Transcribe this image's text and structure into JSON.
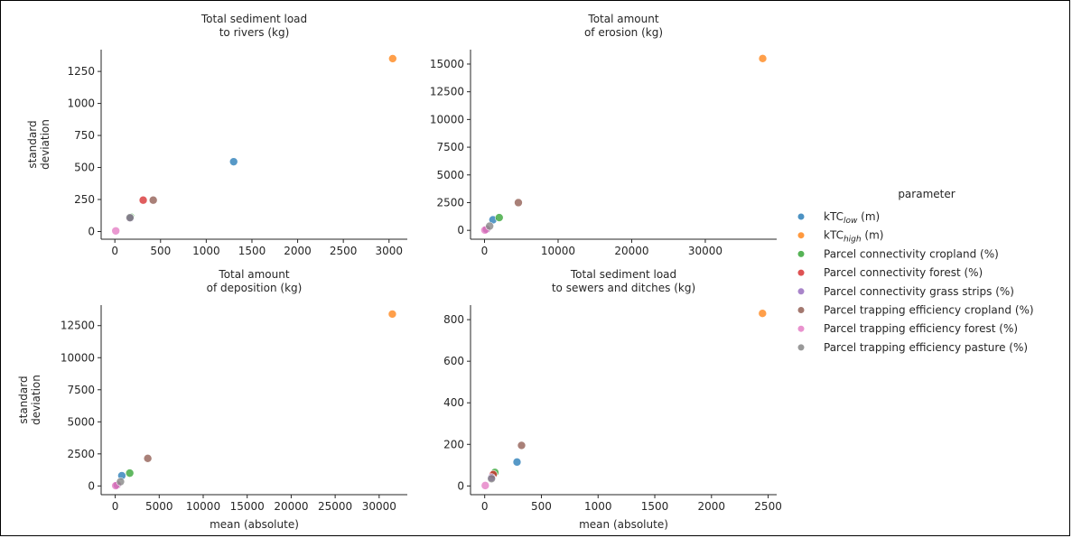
{
  "legend": {
    "title": "parameter",
    "placement": "right",
    "entries": [
      {
        "key": "ktc_low",
        "prefix": "kTC",
        "subscript": "low",
        "suffix": " (m)",
        "color": "#1f77b4"
      },
      {
        "key": "ktc_high",
        "prefix": "kTC",
        "subscript": "high",
        "suffix": " (m)",
        "color": "#ff7f0e"
      },
      {
        "key": "conn_crop",
        "label": "Parcel connectivity cropland (%)",
        "color": "#2ca02c"
      },
      {
        "key": "conn_forest",
        "label": "Parcel connectivity forest (%)",
        "color": "#d62728"
      },
      {
        "key": "conn_grass",
        "label": "Parcel connectivity grass strips (%)",
        "color": "#9467bd"
      },
      {
        "key": "trap_crop",
        "label": "Parcel trapping efficiency cropland (%)",
        "color": "#8c564b"
      },
      {
        "key": "trap_forest",
        "label": "Parcel trapping efficiency forest (%)",
        "color": "#e377c2"
      },
      {
        "key": "trap_pasture",
        "label": "Parcel trapping efficiency pasture (%)",
        "color": "#7f7f7f"
      }
    ]
  },
  "chart_data": [
    {
      "type": "scatter",
      "title": "Total sediment load\nto rivers (kg)",
      "xlabel": "",
      "ylabel": "standard\ndeviation",
      "xlim": [
        -150,
        3200
      ],
      "ylim": [
        -60,
        1420
      ],
      "xticks": [
        0,
        500,
        1000,
        1500,
        2000,
        2500,
        3000
      ],
      "yticks": [
        0,
        250,
        500,
        750,
        1000,
        1250
      ],
      "points": [
        {
          "series": "ktc_low",
          "x": 1300,
          "y": 545
        },
        {
          "series": "ktc_high",
          "x": 3040,
          "y": 1350
        },
        {
          "series": "conn_crop",
          "x": 175,
          "y": 112
        },
        {
          "series": "conn_forest",
          "x": 310,
          "y": 245
        },
        {
          "series": "conn_grass",
          "x": 170,
          "y": 105
        },
        {
          "series": "trap_crop",
          "x": 420,
          "y": 245
        },
        {
          "series": "trap_forest",
          "x": 10,
          "y": 5
        },
        {
          "series": "trap_pasture",
          "x": 165,
          "y": 108
        }
      ]
    },
    {
      "type": "scatter",
      "title": "Total amount\nof erosion (kg)",
      "xlabel": "",
      "ylabel": "",
      "xlim": [
        -1900,
        39700
      ],
      "ylim": [
        -800,
        16300
      ],
      "xticks": [
        0,
        10000,
        20000,
        30000
      ],
      "yticks": [
        0,
        2500,
        5000,
        7500,
        10000,
        12500,
        15000
      ],
      "points": [
        {
          "series": "ktc_low",
          "x": 1150,
          "y": 950
        },
        {
          "series": "ktc_high",
          "x": 37800,
          "y": 15500
        },
        {
          "series": "conn_crop",
          "x": 2000,
          "y": 1150
        },
        {
          "series": "conn_forest",
          "x": 300,
          "y": 120
        },
        {
          "series": "conn_grass",
          "x": 250,
          "y": 80
        },
        {
          "series": "trap_crop",
          "x": 4600,
          "y": 2500
        },
        {
          "series": "trap_forest",
          "x": 50,
          "y": 20
        },
        {
          "series": "trap_pasture",
          "x": 700,
          "y": 380
        }
      ]
    },
    {
      "type": "scatter",
      "title": "Total amount\nof deposition (kg)",
      "xlabel": "mean (absolute)",
      "ylabel": "standard\ndeviation",
      "xlim": [
        -1600,
        33200
      ],
      "ylim": [
        -680,
        14100
      ],
      "xticks": [
        0,
        5000,
        10000,
        15000,
        20000,
        25000,
        30000
      ],
      "yticks": [
        0,
        2500,
        5000,
        7500,
        10000,
        12500
      ],
      "points": [
        {
          "series": "ktc_low",
          "x": 750,
          "y": 800
        },
        {
          "series": "ktc_high",
          "x": 31500,
          "y": 13400
        },
        {
          "series": "conn_crop",
          "x": 1650,
          "y": 1000
        },
        {
          "series": "conn_forest",
          "x": 250,
          "y": 100
        },
        {
          "series": "conn_grass",
          "x": 200,
          "y": 60
        },
        {
          "series": "trap_crop",
          "x": 3700,
          "y": 2150
        },
        {
          "series": "trap_forest",
          "x": 50,
          "y": 20
        },
        {
          "series": "trap_pasture",
          "x": 600,
          "y": 330
        }
      ]
    },
    {
      "type": "scatter",
      "title": "Total sediment load\nto sewers and ditches (kg)",
      "xlabel": "mean (absolute)",
      "ylabel": "",
      "xlim": [
        -125,
        2575
      ],
      "ylim": [
        -42,
        870
      ],
      "xticks": [
        0,
        500,
        1000,
        1500,
        2000,
        2500
      ],
      "yticks": [
        0,
        200,
        400,
        600,
        800
      ],
      "points": [
        {
          "series": "ktc_low",
          "x": 285,
          "y": 115
        },
        {
          "series": "ktc_high",
          "x": 2450,
          "y": 830
        },
        {
          "series": "conn_crop",
          "x": 90,
          "y": 65
        },
        {
          "series": "conn_forest",
          "x": 75,
          "y": 55
        },
        {
          "series": "conn_grass",
          "x": 60,
          "y": 40
        },
        {
          "series": "trap_crop",
          "x": 325,
          "y": 195
        },
        {
          "series": "trap_forest",
          "x": 5,
          "y": 2
        },
        {
          "series": "trap_pasture",
          "x": 60,
          "y": 35
        }
      ]
    }
  ]
}
